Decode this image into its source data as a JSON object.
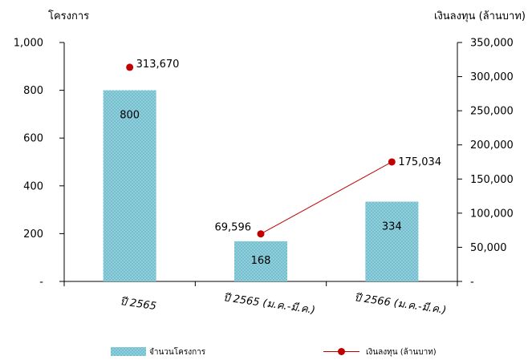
{
  "chart_data": {
    "type": "bar",
    "categories": [
      "ปี 2565",
      "ปี 2565 (ม.ค.-มี.ค.)",
      "ปี 2566 (ม.ค.-มี.ค.)"
    ],
    "y_left": {
      "title": "โครงการ",
      "range": [
        0,
        1000
      ],
      "ticks": [
        0,
        200,
        400,
        600,
        800,
        1000
      ],
      "tick_labels": [
        "-",
        "200",
        "400",
        "600",
        "800",
        "1,000"
      ]
    },
    "y_right": {
      "title": "เงินลงทุน (ล้านบาท)",
      "range": [
        0,
        350000
      ],
      "ticks": [
        0,
        50000,
        100000,
        150000,
        200000,
        250000,
        300000,
        350000
      ],
      "tick_labels": [
        "-",
        "50,000",
        "100,000",
        "150,000",
        "200,000",
        "250,000",
        "300,000",
        "350,000"
      ]
    },
    "series": [
      {
        "name": "จำนวนโครงการ",
        "type": "bar",
        "axis": "left",
        "values": [
          800,
          168,
          334
        ],
        "labels": [
          "800",
          "168",
          "334"
        ],
        "color": "#8ecfdc"
      },
      {
        "name": "เงินลงทุน (ล้านบาท)",
        "type": "line",
        "axis": "right",
        "values": [
          313670,
          69596,
          175034
        ],
        "labels": [
          "313,670",
          "69,596",
          "175,034"
        ],
        "color": "#c00000",
        "connect_from_index": 1
      }
    ],
    "legend_position": "bottom",
    "grid": false
  }
}
